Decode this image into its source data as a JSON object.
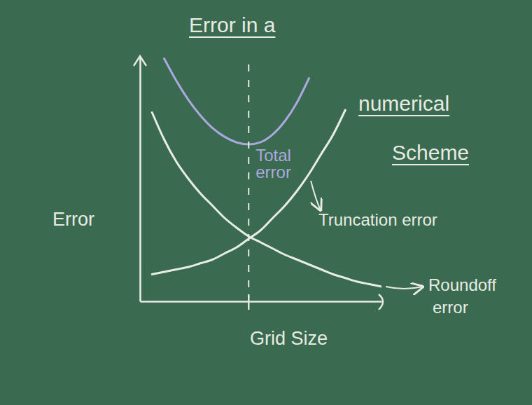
{
  "chart_data": {
    "type": "line",
    "title": "Error in a numerical Scheme",
    "x_label": "Grid Size",
    "y_label": "Error",
    "x": [
      0.5,
      1,
      1.5,
      2,
      2.5,
      3,
      3.5,
      4,
      4.5,
      5,
      5.5,
      6,
      6.5,
      7,
      7.5,
      8,
      8.5,
      9,
      9.5,
      10
    ],
    "series": [
      {
        "name": "Truncation error",
        "color": "#e7ece4",
        "values": [
          1.1,
          1.2,
          1.3,
          1.4,
          1.55,
          1.7,
          1.95,
          2.2,
          2.55,
          2.9,
          3.4,
          3.9,
          4.5,
          5.2,
          6.0,
          6.8,
          7.8,
          null,
          null,
          null
        ]
      },
      {
        "name": "Roundoff error",
        "color": "#e7ece4",
        "values": [
          7.7,
          6.6,
          5.7,
          5.0,
          4.4,
          3.9,
          3.4,
          3.0,
          2.65,
          2.4,
          2.15,
          1.9,
          1.7,
          1.5,
          1.3,
          1.1,
          0.95,
          0.8,
          0.7,
          0.6
        ]
      },
      {
        "name": "Total error",
        "color": "#aaa8de",
        "values": [
          null,
          9.9,
          9.0,
          8.22,
          7.58,
          7.07,
          6.71,
          6.48,
          6.4,
          6.49,
          6.81,
          7.35,
          8.11,
          9.1,
          null,
          null,
          null,
          null,
          null,
          null
        ]
      }
    ],
    "xlim": [
      0,
      10
    ],
    "ylim": [
      0,
      10
    ],
    "grid": false,
    "tick_labels": false
  }
}
